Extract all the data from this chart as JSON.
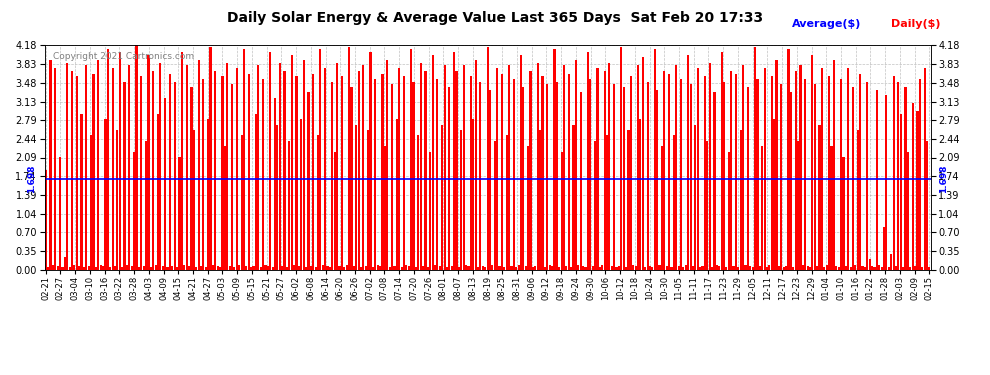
{
  "title": "Daily Solar Energy & Average Value Last 365 Days  Sat Feb 20 17:33",
  "copyright": "Copyright 2021 Cartronics.com",
  "legend_avg": "Average($)",
  "legend_daily": "Daily($)",
  "average_value": 1.698,
  "bar_color": "#ff0000",
  "avg_line_color": "#0000ff",
  "avg_label_color": "#0000ff",
  "avg_label_text": "1.698",
  "background_color": "#ffffff",
  "grid_color": "#999999",
  "ylim": [
    0.0,
    4.18
  ],
  "yticks": [
    0.0,
    0.35,
    0.7,
    1.04,
    1.39,
    1.74,
    2.09,
    2.44,
    2.79,
    3.13,
    3.48,
    3.83,
    4.18
  ],
  "xlabels": [
    "02-21",
    "02-27",
    "03-04",
    "03-10",
    "03-16",
    "03-22",
    "03-28",
    "04-03",
    "04-09",
    "04-15",
    "04-21",
    "04-27",
    "05-03",
    "05-09",
    "05-15",
    "05-21",
    "05-27",
    "06-02",
    "06-08",
    "06-14",
    "06-20",
    "06-26",
    "07-02",
    "07-08",
    "07-14",
    "07-20",
    "07-26",
    "08-01",
    "08-07",
    "08-13",
    "08-19",
    "08-25",
    "08-31",
    "09-06",
    "09-12",
    "09-18",
    "09-24",
    "09-30",
    "10-06",
    "10-12",
    "10-18",
    "10-24",
    "10-30",
    "11-05",
    "11-11",
    "11-17",
    "11-23",
    "11-29",
    "12-05",
    "12-11",
    "12-17",
    "12-23",
    "12-29",
    "01-04",
    "01-10",
    "01-16",
    "01-22",
    "01-28",
    "02-03",
    "02-09",
    "02-15"
  ],
  "values": [
    1.85,
    0.05,
    3.9,
    0.1,
    3.75,
    0.08,
    2.1,
    0.05,
    0.25,
    3.85,
    0.06,
    3.7,
    0.09,
    3.6,
    0.07,
    2.9,
    0.05,
    3.8,
    0.08,
    2.5,
    3.65,
    0.06,
    3.9,
    0.09,
    0.07,
    2.8,
    4.1,
    0.05,
    3.75,
    0.08,
    2.6,
    4.05,
    0.06,
    3.5,
    0.09,
    3.8,
    0.07,
    2.2,
    4.18,
    0.05,
    3.6,
    0.08,
    2.4,
    4.0,
    0.06,
    3.7,
    0.09,
    2.9,
    3.85,
    0.07,
    3.2,
    0.05,
    3.65,
    0.08,
    3.5,
    0.06,
    2.1,
    4.05,
    0.09,
    3.8,
    0.07,
    3.4,
    2.6,
    0.05,
    3.9,
    0.08,
    3.55,
    0.06,
    2.8,
    4.15,
    0.09,
    3.7,
    0.07,
    0.05,
    3.6,
    2.3,
    3.85,
    0.08,
    3.45,
    0.06,
    3.75,
    0.09,
    2.5,
    4.1,
    0.07,
    3.65,
    0.05,
    0.08,
    2.9,
    3.8,
    0.06,
    3.55,
    0.09,
    0.07,
    4.05,
    0.05,
    3.2,
    2.7,
    3.85,
    0.08,
    3.7,
    0.06,
    2.4,
    4.0,
    0.09,
    3.6,
    0.07,
    2.8,
    3.9,
    0.05,
    3.3,
    0.08,
    3.65,
    0.06,
    2.5,
    4.1,
    0.09,
    3.75,
    0.07,
    0.05,
    3.5,
    2.2,
    3.85,
    0.08,
    3.6,
    0.06,
    0.09,
    4.15,
    3.4,
    0.07,
    2.7,
    3.7,
    0.05,
    3.8,
    0.08,
    2.6,
    4.05,
    0.06,
    3.55,
    0.09,
    0.07,
    3.65,
    2.3,
    3.9,
    0.05,
    3.45,
    0.08,
    2.8,
    3.75,
    0.06,
    3.6,
    0.09,
    0.07,
    4.1,
    3.5,
    0.05,
    2.5,
    3.85,
    0.08,
    3.7,
    0.06,
    2.2,
    4.0,
    0.09,
    3.55,
    0.07,
    2.7,
    3.8,
    0.05,
    3.4,
    0.08,
    4.05,
    3.7,
    0.06,
    2.6,
    3.8,
    0.09,
    0.07,
    3.6,
    2.8,
    3.9,
    0.05,
    3.5,
    0.08,
    0.06,
    4.15,
    3.35,
    0.09,
    2.4,
    3.75,
    0.07,
    3.65,
    0.05,
    2.5,
    3.8,
    0.08,
    3.55,
    0.06,
    0.09,
    4.0,
    3.4,
    0.07,
    2.3,
    3.7,
    0.05,
    0.08,
    3.85,
    2.6,
    3.6,
    0.06,
    3.45,
    0.09,
    0.07,
    4.1,
    3.5,
    0.05,
    2.2,
    3.8,
    0.08,
    3.65,
    0.06,
    2.7,
    3.9,
    0.09,
    3.3,
    0.07,
    0.05,
    4.05,
    3.55,
    0.08,
    2.4,
    3.75,
    0.06,
    0.09,
    3.7,
    2.5,
    3.85,
    0.07,
    3.45,
    0.05,
    0.08,
    4.15,
    3.4,
    0.06,
    2.6,
    3.6,
    0.09,
    0.07,
    3.8,
    2.8,
    3.95,
    0.05,
    3.5,
    0.08,
    0.06,
    4.1,
    3.35,
    0.09,
    2.3,
    3.7,
    0.07,
    3.65,
    0.05,
    2.5,
    3.8,
    0.08,
    3.55,
    0.06,
    0.09,
    4.0,
    3.45,
    0.07,
    2.7,
    3.75,
    0.05,
    0.08,
    3.6,
    2.4,
    3.85,
    0.06,
    3.3,
    0.09,
    0.07,
    4.05,
    3.5,
    0.05,
    2.2,
    3.7,
    0.08,
    3.65,
    0.06,
    2.6,
    3.8,
    0.09,
    3.4,
    0.07,
    0.05,
    4.15,
    3.55,
    0.08,
    2.3,
    3.75,
    0.06,
    0.09,
    3.6,
    2.8,
    3.9,
    0.07,
    3.45,
    0.05,
    0.08,
    4.1,
    3.3,
    0.06,
    3.7,
    2.4,
    3.8,
    0.09,
    3.55,
    0.07,
    0.05,
    4.0,
    3.45,
    0.08,
    2.7,
    3.75,
    0.06,
    0.09,
    3.6,
    2.3,
    3.9,
    0.07,
    0.05,
    3.55,
    2.1,
    0.08,
    3.75,
    0.06,
    3.4,
    0.09,
    2.6,
    3.65,
    0.07,
    0.05,
    3.5,
    0.2,
    0.08,
    0.05,
    3.35,
    0.1,
    0.05,
    0.8,
    3.25,
    0.05,
    0.3,
    3.6,
    0.07,
    3.5,
    2.9,
    0.05,
    3.4,
    2.2,
    0.06,
    3.1,
    0.08,
    2.95,
    3.55,
    0.05,
    3.75,
    2.4,
    0.06
  ]
}
